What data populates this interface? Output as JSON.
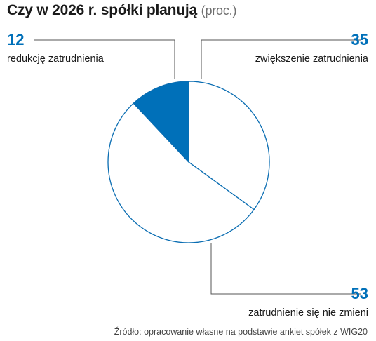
{
  "title": "Czy w 2026 r. spółki planują",
  "unit": "(proc.)",
  "source": "Źródło: opracowanie własne na podstawie ankiet spółek z WIG20",
  "colors": {
    "accent": "#0070b9",
    "outline": "#0a6db2",
    "slice_empty": "#ffffff",
    "leader": "#555555"
  },
  "chart_data": {
    "type": "pie",
    "title": "Czy w 2026 r. spółki planują",
    "unit": "proc.",
    "slices": [
      {
        "label": "zwiększenie zatrudnienia",
        "value": 35,
        "value_label": "35"
      },
      {
        "label": "zatrudnienie się nie zmieni",
        "value": 53,
        "value_label": "53"
      },
      {
        "label": "redukcję zatrudnienia",
        "value": 12,
        "value_label": "12"
      }
    ]
  }
}
